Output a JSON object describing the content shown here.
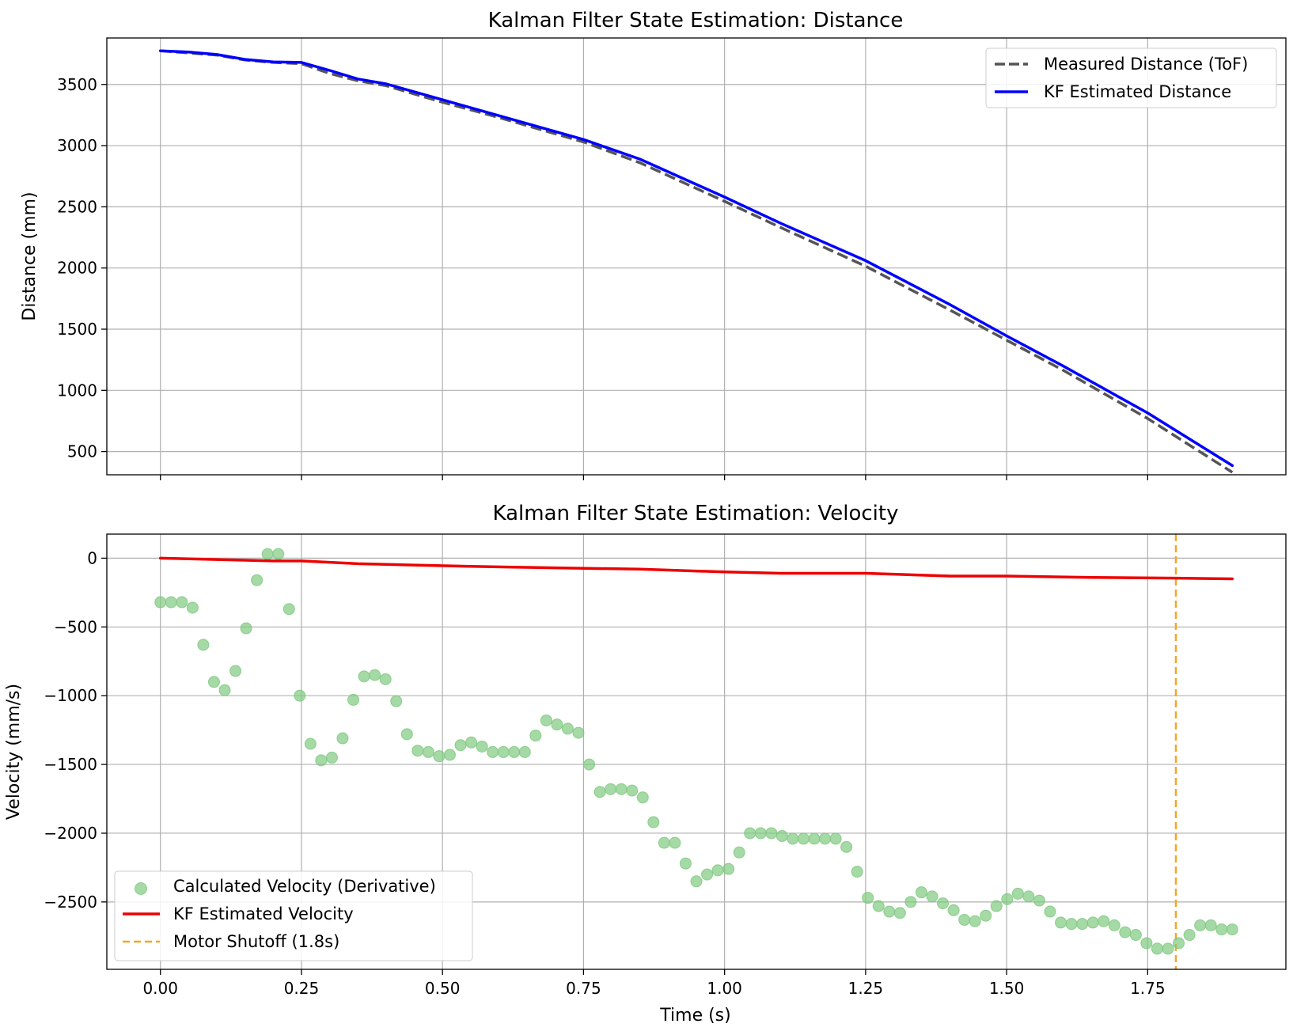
{
  "chart_data": [
    {
      "type": "line",
      "title": "Kalman Filter State Estimation: Distance",
      "xlabel": "",
      "ylabel": "Distance (mm)",
      "xlim": [
        -0.095,
        1.995
      ],
      "ylim": [
        310,
        3880
      ],
      "xticks": [
        0.0,
        0.25,
        0.5,
        0.75,
        1.0,
        1.25,
        1.5,
        1.75
      ],
      "yticks": [
        500,
        1000,
        1500,
        2000,
        2500,
        3000,
        3500
      ],
      "ytick_labels": [
        "500",
        "1000",
        "1500",
        "2000",
        "2500",
        "3000",
        "3500"
      ],
      "grid": true,
      "legend_position": "top-right",
      "series": [
        {
          "name": "Measured Distance (ToF)",
          "color": "#555555",
          "style": "dashed",
          "x": [
            0.0,
            0.1,
            0.15,
            0.2,
            0.25,
            0.3,
            0.35,
            0.4,
            0.5,
            0.6,
            0.75,
            0.85,
            1.0,
            1.1,
            1.25,
            1.4,
            1.5,
            1.6,
            1.75,
            1.9
          ],
          "y": [
            3775,
            3740,
            3700,
            3680,
            3670,
            3590,
            3530,
            3490,
            3355,
            3230,
            3030,
            2860,
            2545,
            2330,
            2015,
            1655,
            1410,
            1165,
            770,
            330
          ]
        },
        {
          "name": "KF Estimated Distance",
          "color": "#0000ff",
          "style": "solid",
          "x": [
            0.0,
            0.05,
            0.1,
            0.15,
            0.2,
            0.25,
            0.3,
            0.35,
            0.4,
            0.5,
            0.6,
            0.75,
            0.85,
            1.0,
            1.1,
            1.25,
            1.4,
            1.5,
            1.6,
            1.75,
            1.9
          ],
          "y": [
            3775,
            3765,
            3745,
            3705,
            3685,
            3680,
            3615,
            3545,
            3505,
            3375,
            3245,
            3050,
            2890,
            2580,
            2365,
            2060,
            1700,
            1445,
            1200,
            815,
            385
          ]
        }
      ]
    },
    {
      "type": "scatter",
      "title": "Kalman Filter State Estimation: Velocity",
      "xlabel": "Time (s)",
      "ylabel": "Velocity (mm/s)",
      "xlim": [
        -0.095,
        1.995
      ],
      "ylim": [
        -2990,
        175
      ],
      "xticks": [
        0.0,
        0.25,
        0.5,
        0.75,
        1.0,
        1.25,
        1.5,
        1.75
      ],
      "xtick_labels": [
        "0.00",
        "0.25",
        "0.50",
        "0.75",
        "1.00",
        "1.25",
        "1.50",
        "1.75"
      ],
      "yticks": [
        0,
        -500,
        -1000,
        -1500,
        -2000,
        -2500
      ],
      "ytick_labels": [
        "0",
        "−500",
        "−1000",
        "−1500",
        "−2000",
        "−2500"
      ],
      "grid": true,
      "legend_position": "bottom-left",
      "series": [
        {
          "name": "Calculated Velocity (Derivative)",
          "type": "scatter",
          "color": "#7fc97f",
          "x": [
            0.0,
            0.019,
            0.038,
            0.057,
            0.076,
            0.095,
            0.114,
            0.133,
            0.152,
            0.171,
            0.19,
            0.209,
            0.228,
            0.247,
            0.266,
            0.285,
            0.304,
            0.323,
            0.342,
            0.361,
            0.38,
            0.399,
            0.418,
            0.437,
            0.456,
            0.475,
            0.494,
            0.513,
            0.532,
            0.551,
            0.57,
            0.589,
            0.608,
            0.627,
            0.646,
            0.665,
            0.684,
            0.703,
            0.722,
            0.741,
            0.76,
            0.779,
            0.798,
            0.817,
            0.836,
            0.855,
            0.874,
            0.893,
            0.912,
            0.931,
            0.95,
            0.969,
            0.988,
            1.007,
            1.026,
            1.045,
            1.064,
            1.083,
            1.102,
            1.121,
            1.14,
            1.159,
            1.178,
            1.197,
            1.216,
            1.235,
            1.254,
            1.273,
            1.292,
            1.311,
            1.33,
            1.349,
            1.368,
            1.387,
            1.406,
            1.425,
            1.444,
            1.463,
            1.482,
            1.501,
            1.52,
            1.539,
            1.558,
            1.577,
            1.596,
            1.615,
            1.634,
            1.653,
            1.672,
            1.691,
            1.71,
            1.729,
            1.748,
            1.767,
            1.786,
            1.805,
            1.824,
            1.843,
            1.862,
            1.881,
            1.9
          ],
          "y": [
            -320,
            -320,
            -320,
            -360,
            -630,
            -900,
            -960,
            -820,
            -510,
            -160,
            30,
            30,
            -370,
            -1000,
            -1350,
            -1470,
            -1450,
            -1310,
            -1030,
            -860,
            -850,
            -880,
            -1040,
            -1280,
            -1400,
            -1410,
            -1440,
            -1430,
            -1360,
            -1340,
            -1370,
            -1410,
            -1410,
            -1410,
            -1410,
            -1290,
            -1180,
            -1210,
            -1240,
            -1270,
            -1500,
            -1700,
            -1680,
            -1680,
            -1690,
            -1740,
            -1920,
            -2070,
            -2070,
            -2220,
            -2350,
            -2300,
            -2270,
            -2260,
            -2140,
            -2000,
            -2000,
            -2000,
            -2020,
            -2040,
            -2040,
            -2040,
            -2040,
            -2040,
            -2100,
            -2280,
            -2470,
            -2530,
            -2570,
            -2580,
            -2500,
            -2430,
            -2460,
            -2510,
            -2560,
            -2630,
            -2640,
            -2600,
            -2530,
            -2480,
            -2440,
            -2460,
            -2490,
            -2570,
            -2650,
            -2660,
            -2660,
            -2650,
            -2640,
            -2670,
            -2720,
            -2740,
            -2800,
            -2840,
            -2840,
            -2800,
            -2740,
            -2670,
            -2670,
            -2700,
            -2700
          ]
        },
        {
          "name": "KF Estimated Velocity",
          "type": "line",
          "color": "#ee0000",
          "x": [
            0.0,
            0.1,
            0.2,
            0.25,
            0.3,
            0.35,
            0.45,
            0.55,
            0.7,
            0.85,
            1.0,
            1.1,
            1.25,
            1.4,
            1.5,
            1.65,
            1.8,
            1.9
          ],
          "y": [
            0,
            -10,
            -20,
            -20,
            -30,
            -40,
            -50,
            -60,
            -70,
            -80,
            -100,
            -110,
            -110,
            -130,
            -130,
            -140,
            -145,
            -150
          ]
        }
      ],
      "vlines": [
        {
          "name": "Motor Shutoff (1.8s)",
          "x": 1.8,
          "color": "#f5a623",
          "style": "dashed"
        }
      ]
    }
  ]
}
